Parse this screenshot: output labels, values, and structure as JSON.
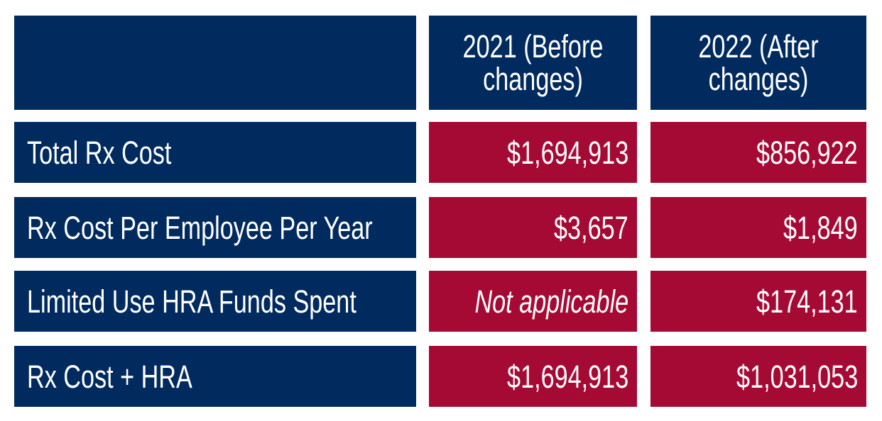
{
  "table": {
    "header": [
      "2021 (Before changes)",
      "2022 (After changes)"
    ],
    "rows": [
      [
        "Total Rx Cost",
        "$1,694,913",
        "$856,922"
      ],
      [
        "Rx Cost Per Employee Per Year",
        "$3,657",
        "$1,849"
      ],
      [
        "Limited Use HRA Funds Spent",
        "Not applicable",
        "$174,131"
      ],
      [
        "Rx Cost + HRA",
        "$1,694,913",
        "$1,031,053"
      ]
    ]
  }
}
